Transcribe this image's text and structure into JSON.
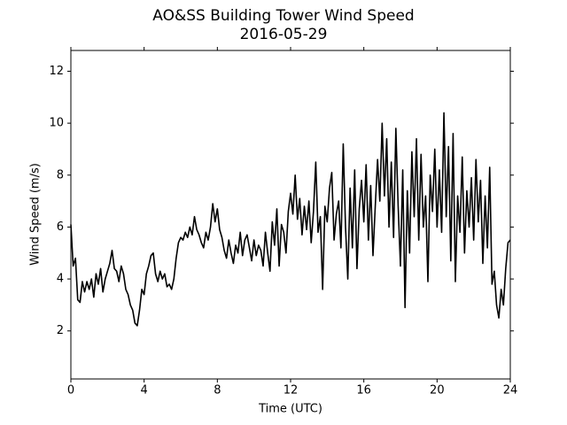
{
  "chart_data": {
    "type": "line",
    "title": "AO&SS Building Tower Wind Speed",
    "subtitle": "2016-05-29",
    "x_label": "Time (UTC)",
    "y_label": "Wind Speed (m/s)",
    "color": "#000000",
    "xlim": [
      0,
      24
    ],
    "xticks": [
      0,
      4,
      8,
      12,
      16,
      20,
      24
    ],
    "ylim": [
      0.15,
      12.8
    ],
    "yticks": [
      2,
      4,
      6,
      8,
      10,
      12
    ],
    "x": [
      0,
      0.125,
      0.25,
      0.375,
      0.5,
      0.625,
      0.75,
      0.875,
      1,
      1.125,
      1.25,
      1.375,
      1.5,
      1.625,
      1.75,
      1.875,
      2,
      2.125,
      2.25,
      2.375,
      2.5,
      2.625,
      2.75,
      2.875,
      3,
      3.125,
      3.25,
      3.375,
      3.5,
      3.625,
      3.75,
      3.875,
      4,
      4.125,
      4.25,
      4.375,
      4.5,
      4.625,
      4.75,
      4.875,
      5,
      5.125,
      5.25,
      5.375,
      5.5,
      5.625,
      5.75,
      5.875,
      6,
      6.125,
      6.25,
      6.375,
      6.5,
      6.625,
      6.75,
      6.875,
      7,
      7.125,
      7.25,
      7.375,
      7.5,
      7.625,
      7.75,
      7.875,
      8,
      8.125,
      8.25,
      8.375,
      8.5,
      8.625,
      8.75,
      8.875,
      9,
      9.125,
      9.25,
      9.375,
      9.5,
      9.625,
      9.75,
      9.875,
      10,
      10.125,
      10.25,
      10.375,
      10.5,
      10.625,
      10.75,
      10.875,
      11,
      11.125,
      11.25,
      11.375,
      11.5,
      11.625,
      11.75,
      11.875,
      12,
      12.125,
      12.25,
      12.375,
      12.5,
      12.625,
      12.75,
      12.875,
      13,
      13.125,
      13.25,
      13.375,
      13.5,
      13.625,
      13.75,
      13.875,
      14,
      14.125,
      14.25,
      14.375,
      14.5,
      14.625,
      14.75,
      14.875,
      15,
      15.125,
      15.25,
      15.375,
      15.5,
      15.625,
      15.75,
      15.875,
      16,
      16.125,
      16.25,
      16.375,
      16.5,
      16.625,
      16.75,
      16.875,
      17,
      17.125,
      17.25,
      17.375,
      17.5,
      17.625,
      17.75,
      17.875,
      18,
      18.125,
      18.25,
      18.375,
      18.5,
      18.625,
      18.75,
      18.875,
      19,
      19.125,
      19.25,
      19.375,
      19.5,
      19.625,
      19.75,
      19.875,
      20,
      20.125,
      20.25,
      20.375,
      20.5,
      20.625,
      20.75,
      20.875,
      21,
      21.125,
      21.25,
      21.375,
      21.5,
      21.625,
      21.75,
      21.875,
      22,
      22.125,
      22.25,
      22.375,
      22.5,
      22.625,
      22.75,
      22.875,
      23,
      23.125,
      23.25,
      23.375,
      23.5,
      23.625,
      23.75,
      23.875,
      24
    ],
    "values": [
      6.1,
      4.5,
      4.8,
      3.2,
      3.1,
      3.9,
      3.5,
      3.9,
      3.6,
      4.0,
      3.3,
      4.2,
      3.8,
      4.4,
      3.5,
      4.0,
      4.3,
      4.6,
      5.1,
      4.4,
      4.3,
      3.9,
      4.5,
      4.2,
      3.6,
      3.4,
      3.0,
      2.8,
      2.3,
      2.2,
      2.8,
      3.6,
      3.4,
      4.2,
      4.5,
      4.9,
      5.0,
      4.2,
      3.9,
      4.3,
      4.0,
      4.2,
      3.7,
      3.8,
      3.6,
      4.0,
      4.8,
      5.4,
      5.6,
      5.5,
      5.8,
      5.6,
      6.0,
      5.7,
      6.4,
      5.9,
      5.7,
      5.4,
      5.2,
      5.8,
      5.5,
      6.0,
      6.9,
      6.2,
      6.7,
      5.9,
      5.6,
      5.1,
      4.8,
      5.5,
      5.0,
      4.6,
      5.3,
      5.0,
      5.8,
      4.9,
      5.5,
      5.7,
      5.2,
      4.7,
      5.5,
      4.9,
      5.3,
      5.1,
      4.5,
      5.8,
      5.0,
      4.3,
      6.2,
      5.3,
      6.7,
      4.5,
      6.1,
      5.8,
      5.0,
      6.6,
      7.3,
      6.5,
      8.0,
      6.3,
      7.1,
      5.7,
      6.8,
      5.9,
      7.0,
      5.4,
      6.6,
      8.5,
      5.8,
      6.4,
      3.6,
      6.8,
      6.2,
      7.5,
      8.1,
      5.5,
      6.5,
      7.0,
      5.2,
      9.2,
      6.0,
      4.0,
      7.5,
      5.2,
      8.2,
      4.4,
      6.7,
      7.8,
      6.2,
      8.4,
      5.5,
      7.6,
      4.9,
      6.8,
      8.6,
      7.0,
      10.0,
      7.2,
      9.4,
      6.0,
      8.5,
      5.6,
      9.8,
      6.8,
      4.5,
      8.2,
      2.9,
      7.4,
      5.0,
      8.9,
      6.4,
      9.4,
      5.5,
      8.8,
      6.0,
      7.2,
      3.9,
      8.0,
      6.6,
      9.0,
      6.0,
      8.2,
      5.8,
      10.4,
      6.4,
      9.1,
      4.7,
      9.6,
      3.9,
      7.2,
      5.8,
      8.7,
      5.0,
      7.4,
      6.0,
      7.9,
      5.5,
      8.6,
      6.2,
      7.8,
      4.6,
      7.2,
      5.2,
      8.3,
      3.8,
      4.3,
      3.0,
      2.5,
      3.6,
      3.0,
      4.4,
      5.4,
      5.5
    ]
  }
}
